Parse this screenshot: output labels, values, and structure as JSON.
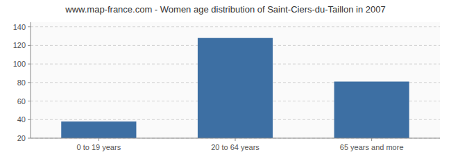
{
  "chart_data": {
    "type": "bar",
    "title": "www.map-france.com - Women age distribution of Saint-Ciers-du-Taillon in 2007",
    "categories": [
      "0 to 19 years",
      "20 to 64 years",
      "65 years and more"
    ],
    "values": [
      38,
      128,
      81
    ],
    "color": "#3d6fa3",
    "ylim": [
      20,
      145
    ],
    "yticks": [
      20,
      40,
      60,
      80,
      100,
      120,
      140
    ],
    "grid": true
  }
}
